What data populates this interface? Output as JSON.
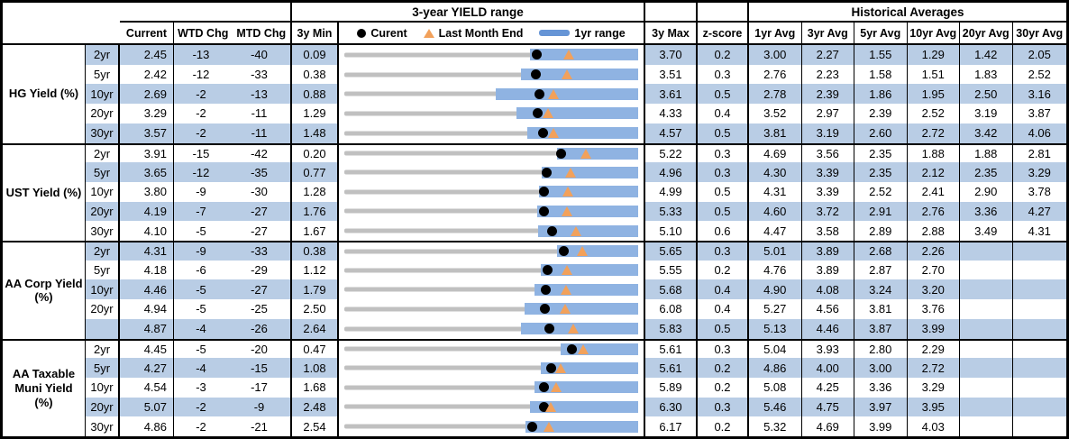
{
  "colors": {
    "stripe": "#b9cde5",
    "bar": "#8fb3e2",
    "legend_bar": "#6695d6",
    "track": "#c0c0c0",
    "marker": "#f2a15b",
    "dot": "#000000",
    "border": "#000000"
  },
  "chart_data": {
    "type": "table",
    "subtype": "bullet-range rows: gray = 3y range, blue bar = 1yr range, dot = current, triangle = last month end",
    "titles": {
      "range": "3-year YIELD range",
      "hist": "Historical Averages"
    },
    "columns": {
      "current": "Current",
      "wtd": "WTD Chg",
      "mtd": "MTD Chg",
      "min": "3y Min",
      "max": "3y Max",
      "z": "z-score",
      "avgs": [
        "1yr Avg",
        "3yr Avg",
        "5yr Avg",
        "10yr Avg",
        "20yr Avg",
        "30yr Avg"
      ]
    },
    "legend": {
      "current": "Curent",
      "last_month_end": "Last Month End",
      "range": "1yr range"
    },
    "sections": [
      {
        "label": "HG Yield (%)",
        "rows": [
          {
            "tenor": "2yr",
            "current": "2.45",
            "wtd": "-13",
            "mtd": "-40",
            "min": "0.09",
            "max": "3.70",
            "z": "0.2",
            "avgs": [
              "3.00",
              "2.27",
              "1.55",
              "1.29",
              "1.42",
              "2.05"
            ],
            "lme": 2.85,
            "bar_lo": 2.37
          },
          {
            "tenor": "5yr",
            "current": "2.42",
            "wtd": "-12",
            "mtd": "-33",
            "min": "0.38",
            "max": "3.51",
            "z": "0.3",
            "avgs": [
              "2.76",
              "2.23",
              "1.58",
              "1.51",
              "1.83",
              "2.52"
            ],
            "lme": 2.75,
            "bar_lo": 2.26
          },
          {
            "tenor": "10yr",
            "current": "2.69",
            "wtd": "-2",
            "mtd": "-13",
            "min": "0.88",
            "max": "3.61",
            "z": "0.5",
            "avgs": [
              "2.78",
              "2.39",
              "1.86",
              "1.95",
              "2.50",
              "3.16"
            ],
            "lme": 2.82,
            "bar_lo": 2.29
          },
          {
            "tenor": "20yr",
            "current": "3.29",
            "wtd": "-2",
            "mtd": "-11",
            "min": "1.29",
            "max": "4.33",
            "z": "0.4",
            "avgs": [
              "3.52",
              "2.97",
              "2.39",
              "2.52",
              "3.19",
              "3.87"
            ],
            "lme": 3.4,
            "bar_lo": 3.07
          },
          {
            "tenor": "30yr",
            "current": "3.57",
            "wtd": "-2",
            "mtd": "-11",
            "min": "1.48",
            "max": "4.57",
            "z": "0.5",
            "avgs": [
              "3.81",
              "3.19",
              "2.60",
              "2.72",
              "3.42",
              "4.06"
            ],
            "lme": 3.68,
            "bar_lo": 3.4
          }
        ]
      },
      {
        "label": "UST Yield (%)",
        "rows": [
          {
            "tenor": "2yr",
            "current": "3.91",
            "wtd": "-15",
            "mtd": "-42",
            "min": "0.20",
            "max": "5.22",
            "z": "0.3",
            "avgs": [
              "4.69",
              "3.56",
              "2.35",
              "1.88",
              "1.88",
              "2.81"
            ],
            "lme": 4.33,
            "bar_lo": 3.83
          },
          {
            "tenor": "5yr",
            "current": "3.65",
            "wtd": "-12",
            "mtd": "-35",
            "min": "0.77",
            "max": "4.96",
            "z": "0.3",
            "avgs": [
              "4.30",
              "3.39",
              "2.35",
              "2.12",
              "2.35",
              "3.29"
            ],
            "lme": 4.0,
            "bar_lo": 3.59
          },
          {
            "tenor": "10yr",
            "current": "3.80",
            "wtd": "-9",
            "mtd": "-30",
            "min": "1.28",
            "max": "4.99",
            "z": "0.5",
            "avgs": [
              "4.31",
              "3.39",
              "2.52",
              "2.41",
              "2.90",
              "3.78"
            ],
            "lme": 4.1,
            "bar_lo": 3.74
          },
          {
            "tenor": "20yr",
            "current": "4.19",
            "wtd": "-7",
            "mtd": "-27",
            "min": "1.76",
            "max": "5.33",
            "z": "0.5",
            "avgs": [
              "4.60",
              "3.72",
              "2.91",
              "2.76",
              "3.36",
              "4.27"
            ],
            "lme": 4.46,
            "bar_lo": 4.1
          },
          {
            "tenor": "30yr",
            "current": "4.10",
            "wtd": "-5",
            "mtd": "-27",
            "min": "1.67",
            "max": "5.10",
            "z": "0.6",
            "avgs": [
              "4.47",
              "3.58",
              "2.89",
              "2.88",
              "3.49",
              "4.31"
            ],
            "lme": 4.37,
            "bar_lo": 3.93
          }
        ]
      },
      {
        "label": "AA Corp Yield (%)",
        "rows": [
          {
            "tenor": "2yr",
            "current": "4.31",
            "wtd": "-9",
            "mtd": "-33",
            "min": "0.38",
            "max": "5.65",
            "z": "0.3",
            "avgs": [
              "5.01",
              "3.89",
              "2.68",
              "2.26",
              "",
              ""
            ],
            "lme": 4.64,
            "bar_lo": 4.19
          },
          {
            "tenor": "5yr",
            "current": "4.18",
            "wtd": "-6",
            "mtd": "-29",
            "min": "1.12",
            "max": "5.55",
            "z": "0.2",
            "avgs": [
              "4.76",
              "3.89",
              "2.87",
              "2.70",
              "",
              ""
            ],
            "lme": 4.47,
            "bar_lo": 4.08
          },
          {
            "tenor": "10yr",
            "current": "4.46",
            "wtd": "-5",
            "mtd": "-27",
            "min": "1.79",
            "max": "5.68",
            "z": "0.4",
            "avgs": [
              "4.90",
              "4.08",
              "3.24",
              "3.20",
              "",
              ""
            ],
            "lme": 4.73,
            "bar_lo": 4.31
          },
          {
            "tenor": "20yr",
            "current": "4.94",
            "wtd": "-5",
            "mtd": "-25",
            "min": "2.50",
            "max": "6.08",
            "z": "0.4",
            "avgs": [
              "5.27",
              "4.56",
              "3.81",
              "3.76",
              "",
              ""
            ],
            "lme": 5.19,
            "bar_lo": 4.7
          },
          {
            "tenor": "",
            "current": "4.87",
            "wtd": "-4",
            "mtd": "-26",
            "min": "2.64",
            "max": "5.83",
            "z": "0.5",
            "avgs": [
              "5.13",
              "4.46",
              "3.87",
              "3.99",
              "",
              ""
            ],
            "lme": 5.13,
            "bar_lo": 4.56
          }
        ]
      },
      {
        "label": "AA Taxable Muni Yield (%)",
        "rows": [
          {
            "tenor": "2yr",
            "current": "4.45",
            "wtd": "-5",
            "mtd": "-20",
            "min": "0.47",
            "max": "5.61",
            "z": "0.3",
            "avgs": [
              "5.04",
              "3.93",
              "2.80",
              "2.29",
              "",
              ""
            ],
            "lme": 4.65,
            "bar_lo": 4.25
          },
          {
            "tenor": "5yr",
            "current": "4.27",
            "wtd": "-4",
            "mtd": "-15",
            "min": "1.08",
            "max": "5.61",
            "z": "0.2",
            "avgs": [
              "4.86",
              "4.00",
              "3.00",
              "2.72",
              "",
              ""
            ],
            "lme": 4.42,
            "bar_lo": 4.11
          },
          {
            "tenor": "10yr",
            "current": "4.54",
            "wtd": "-3",
            "mtd": "-17",
            "min": "1.68",
            "max": "5.89",
            "z": "0.2",
            "avgs": [
              "5.08",
              "4.25",
              "3.36",
              "3.29",
              "",
              ""
            ],
            "lme": 4.71,
            "bar_lo": 4.4
          },
          {
            "tenor": "20yr",
            "current": "5.07",
            "wtd": "-2",
            "mtd": "-9",
            "min": "2.48",
            "max": "6.30",
            "z": "0.3",
            "avgs": [
              "5.46",
              "4.75",
              "3.97",
              "3.95",
              "",
              ""
            ],
            "lme": 5.16,
            "bar_lo": 4.89
          },
          {
            "tenor": "30yr",
            "current": "4.86",
            "wtd": "-2",
            "mtd": "-21",
            "min": "2.54",
            "max": "6.17",
            "z": "0.2",
            "avgs": [
              "5.32",
              "4.69",
              "3.99",
              "4.03",
              "",
              ""
            ],
            "lme": 5.07,
            "bar_lo": 4.78
          }
        ]
      }
    ]
  }
}
